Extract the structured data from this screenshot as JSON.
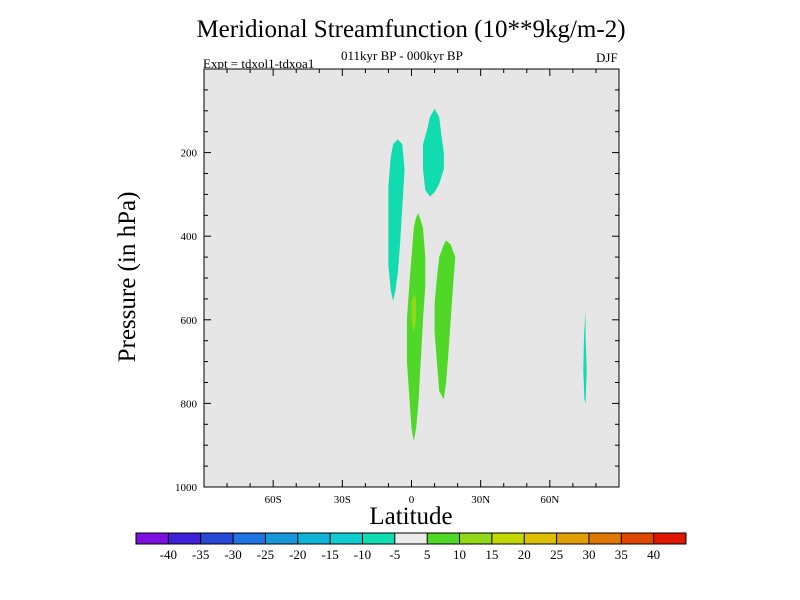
{
  "chart_data": {
    "type": "contour",
    "title": "Meridional Streamfunction (10**9kg/m-2)",
    "subtitle": "011kyr BP - 000kyr BP",
    "experiment": "Expt = tdxol1-tdxoa1",
    "season": "DJF",
    "xlabel": "Latitude",
    "ylabel": "Pressure (in hPa)",
    "x_range": [
      -90,
      90
    ],
    "y_range": [
      1000,
      0
    ],
    "x_ticks": [
      {
        "value": -60,
        "label": "60S"
      },
      {
        "value": -30,
        "label": "30S"
      },
      {
        "value": 0,
        "label": "0"
      },
      {
        "value": 30,
        "label": "30N"
      },
      {
        "value": 60,
        "label": "60N"
      }
    ],
    "y_ticks": [
      {
        "value": 200,
        "label": "200"
      },
      {
        "value": 400,
        "label": "400"
      },
      {
        "value": 600,
        "label": "600"
      },
      {
        "value": 800,
        "label": "800"
      },
      {
        "value": 1000,
        "label": "1000"
      }
    ],
    "colorbar": {
      "labels": [
        "-40",
        "-35",
        "-30",
        "-25",
        "-20",
        "-15",
        "-10",
        "-5",
        "5",
        "10",
        "15",
        "20",
        "25",
        "30",
        "35",
        "40"
      ],
      "colors": [
        "#7B10E0",
        "#4020D8",
        "#2848D8",
        "#1E74E0",
        "#1898DC",
        "#10B4D8",
        "#10CCD0",
        "#10DCB0",
        "#EAEAEA",
        "#50D828",
        "#90D818",
        "#C4D800",
        "#DCC000",
        "#E0A000",
        "#E07800",
        "#E04800",
        "#E01800"
      ]
    },
    "regions": [
      {
        "level": "-10 to -5",
        "color": "#10DCB0",
        "outline": [
          [
            -6,
            168
          ],
          [
            -4,
            180
          ],
          [
            -3,
            240
          ],
          [
            -4,
            330
          ],
          [
            -5,
            420
          ],
          [
            -6,
            490
          ],
          [
            -7,
            530
          ],
          [
            -8,
            555
          ],
          [
            -9,
            530
          ],
          [
            -10,
            470
          ],
          [
            -10,
            380
          ],
          [
            -10,
            280
          ],
          [
            -9,
            210
          ],
          [
            -8,
            180
          ]
        ]
      },
      {
        "level": "-10 to -5",
        "color": "#10DCB0",
        "outline": [
          [
            10,
            95
          ],
          [
            12,
            115
          ],
          [
            13,
            160
          ],
          [
            14,
            200
          ],
          [
            14,
            240
          ],
          [
            12,
            275
          ],
          [
            10,
            295
          ],
          [
            8,
            305
          ],
          [
            6,
            290
          ],
          [
            5,
            240
          ],
          [
            5,
            180
          ],
          [
            7,
            140
          ],
          [
            8,
            115
          ]
        ]
      },
      {
        "level": "5 to 10",
        "color": "#50D828",
        "outline": [
          [
            3,
            345
          ],
          [
            5,
            380
          ],
          [
            6,
            450
          ],
          [
            6,
            520
          ],
          [
            5,
            600
          ],
          [
            4,
            700
          ],
          [
            3,
            800
          ],
          [
            2,
            860
          ],
          [
            1,
            890
          ],
          [
            0,
            860
          ],
          [
            -1,
            780
          ],
          [
            -2,
            700
          ],
          [
            -2,
            600
          ],
          [
            -1,
            520
          ],
          [
            0,
            450
          ],
          [
            1,
            380
          ],
          [
            2,
            355
          ]
        ]
      },
      {
        "level": "10 to 15",
        "color": "#90D818",
        "outline": [
          [
            1,
            540
          ],
          [
            2,
            550
          ],
          [
            2,
            600
          ],
          [
            1,
            630
          ],
          [
            0,
            600
          ],
          [
            0,
            560
          ]
        ]
      },
      {
        "level": "5 to 10",
        "color": "#50D828",
        "outline": [
          [
            15,
            410
          ],
          [
            17,
            420
          ],
          [
            19,
            450
          ],
          [
            18,
            520
          ],
          [
            17,
            600
          ],
          [
            16,
            680
          ],
          [
            15,
            750
          ],
          [
            14,
            790
          ],
          [
            12,
            770
          ],
          [
            11,
            700
          ],
          [
            10,
            630
          ],
          [
            10,
            560
          ],
          [
            11,
            500
          ],
          [
            12,
            450
          ],
          [
            14,
            420
          ]
        ]
      },
      {
        "level": "-10 to -5",
        "color": "#10DCB0",
        "outline": [
          [
            75.5,
            578
          ],
          [
            75.5,
            640
          ],
          [
            76,
            720
          ],
          [
            75.5,
            800
          ],
          [
            75,
            790
          ],
          [
            74.5,
            720
          ],
          [
            74.8,
            640
          ]
        ]
      }
    ]
  }
}
